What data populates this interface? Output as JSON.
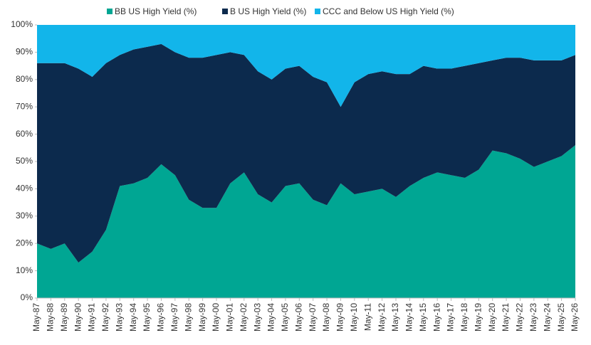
{
  "chart_data": {
    "type": "stacked_area",
    "categories": [
      "May-87",
      "May-88",
      "May-89",
      "May-90",
      "May-91",
      "May-92",
      "May-93",
      "May-94",
      "May-95",
      "May-96",
      "May-97",
      "May-98",
      "May-99",
      "May-00",
      "May-01",
      "May-02",
      "May-03",
      "May-04",
      "May-05",
      "May-06",
      "May-07",
      "May-08",
      "May-09",
      "May-10",
      "May-11",
      "May-12",
      "May-13",
      "May-14",
      "May-15",
      "May-16",
      "May-17",
      "May-18",
      "May-19",
      "May-20",
      "May-21",
      "May-22",
      "May-23",
      "May-24",
      "May-25",
      "May-26"
    ],
    "series": [
      {
        "name": "BB US High Yield (%)",
        "color": "#00a693",
        "values": [
          20,
          18,
          20,
          13,
          17,
          25,
          41,
          42,
          44,
          49,
          45,
          36,
          33,
          33,
          42,
          46,
          38,
          35,
          41,
          42,
          36,
          34,
          42,
          38,
          39,
          40,
          37,
          41,
          44,
          46,
          45,
          44,
          47,
          54,
          53,
          51,
          48,
          50,
          52,
          56
        ]
      },
      {
        "name": "B US High Yield (%)",
        "color": "#0c2a4d",
        "values": [
          66,
          68,
          66,
          71,
          64,
          61,
          48,
          49,
          48,
          44,
          45,
          52,
          55,
          56,
          48,
          43,
          45,
          45,
          43,
          43,
          45,
          45,
          28,
          41,
          43,
          43,
          45,
          41,
          41,
          38,
          39,
          41,
          39,
          33,
          35,
          37,
          39,
          37,
          35,
          33
        ]
      },
      {
        "name": "CCC and Below US High Yield (%)",
        "color": "#12b5ea",
        "values": [
          14,
          14,
          14,
          16,
          19,
          14,
          11,
          9,
          8,
          7,
          10,
          12,
          12,
          11,
          10,
          11,
          17,
          20,
          16,
          15,
          19,
          21,
          30,
          21,
          18,
          17,
          18,
          18,
          15,
          16,
          16,
          15,
          14,
          13,
          12,
          12,
          13,
          13,
          13,
          11
        ]
      }
    ],
    "ylim": [
      0,
      100
    ],
    "yticks": [
      {
        "value": 0,
        "label": "0%"
      },
      {
        "value": 10,
        "label": "10%"
      },
      {
        "value": 20,
        "label": "20%"
      },
      {
        "value": 30,
        "label": "30%"
      },
      {
        "value": 40,
        "label": "40%"
      },
      {
        "value": 50,
        "label": "50%"
      },
      {
        "value": 60,
        "label": "60%"
      },
      {
        "value": 70,
        "label": "70%"
      },
      {
        "value": 80,
        "label": "80%"
      },
      {
        "value": 90,
        "label": "90%"
      },
      {
        "value": 100,
        "label": "100%"
      }
    ]
  }
}
